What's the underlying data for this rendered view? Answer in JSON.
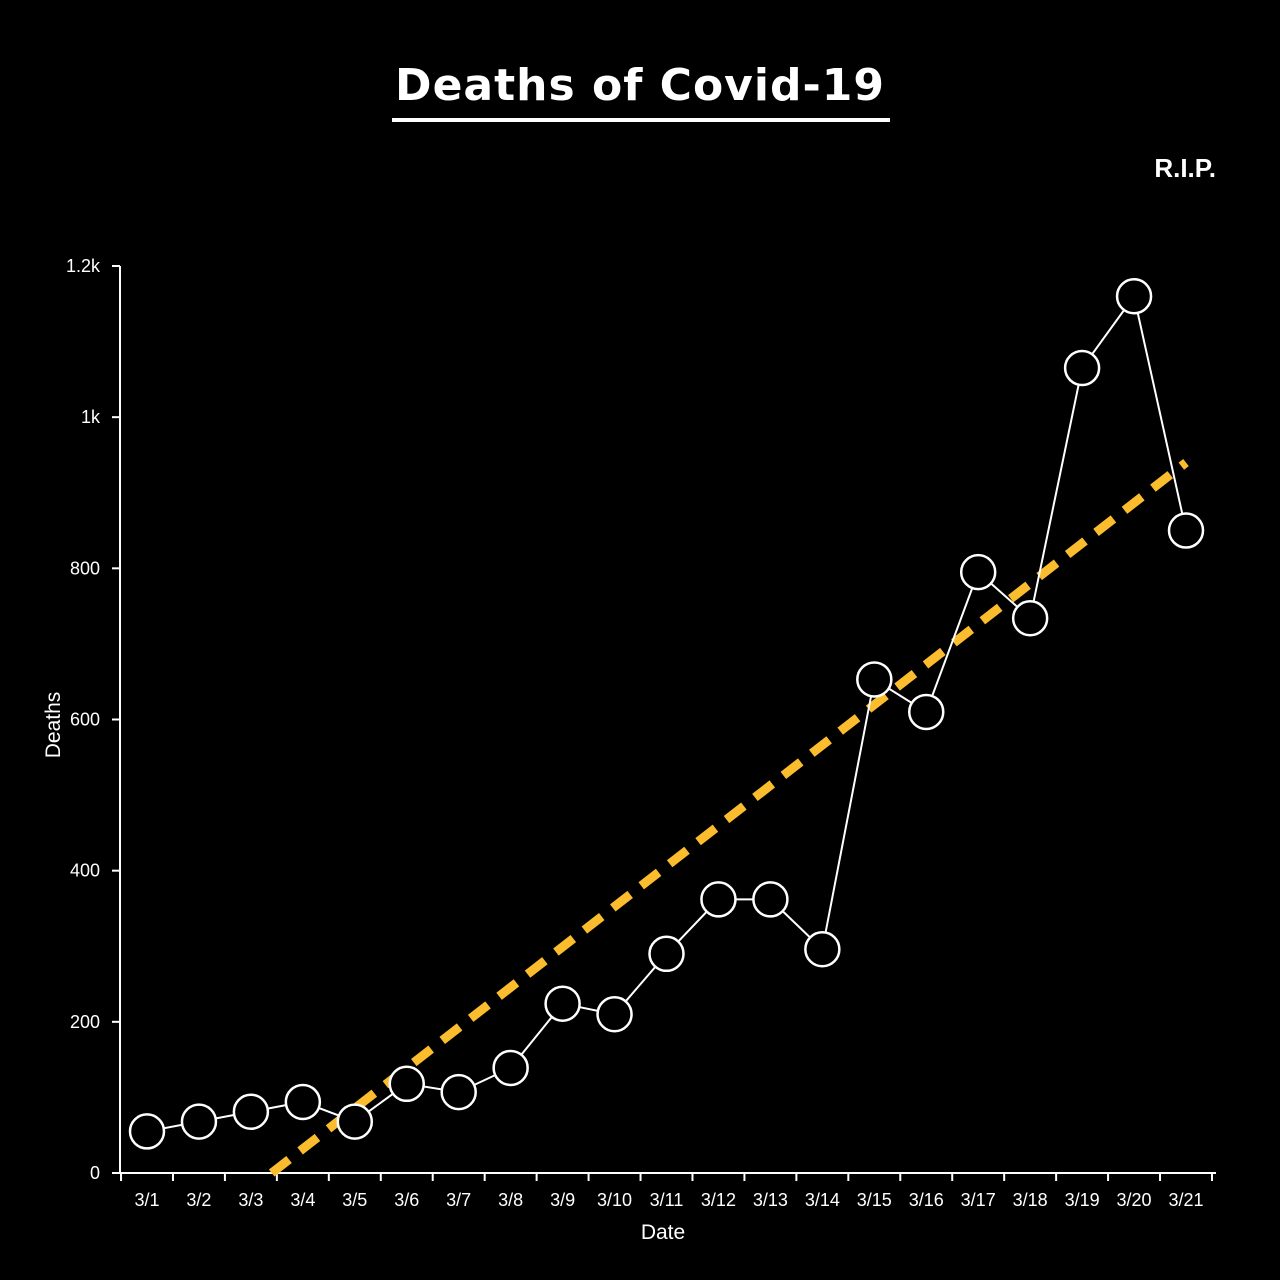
{
  "chart_data": {
    "type": "line",
    "title": "Deaths of Covid-19",
    "subtitle": "R.I.P.",
    "xlabel": "Date",
    "ylabel": "Deaths",
    "categories": [
      "3/1",
      "3/2",
      "3/3",
      "3/4",
      "3/5",
      "3/6",
      "3/7",
      "3/8",
      "3/9",
      "3/10",
      "3/11",
      "3/12",
      "3/13",
      "3/14",
      "3/15",
      "3/16",
      "3/17",
      "3/18",
      "3/19",
      "3/20",
      "3/21"
    ],
    "ylim": [
      0,
      1200
    ],
    "y_ticks": [
      0,
      200,
      400,
      600,
      800,
      1000,
      1200
    ],
    "y_tick_labels": [
      "0",
      "200",
      "400",
      "600",
      "800",
      "1k",
      "1.2k"
    ],
    "grid": false,
    "legend": "none",
    "series": [
      {
        "values": [
          55,
          68,
          81,
          94,
          68,
          118,
          107,
          139,
          224,
          210,
          290,
          362,
          362,
          296,
          653,
          610,
          795,
          734,
          1065,
          1160,
          850
        ]
      }
    ],
    "trendline": {
      "style": "dashed",
      "x_start": 2.4,
      "y_start": 0,
      "x_end": 20,
      "y_end": 940
    },
    "colors": {
      "background": "#000000",
      "line": "#ffffff",
      "marker_fill": "#000000",
      "marker_stroke": "#ffffff",
      "trend": "#fbbc2e",
      "axis": "#ffffff",
      "text": "#ffffff"
    }
  }
}
